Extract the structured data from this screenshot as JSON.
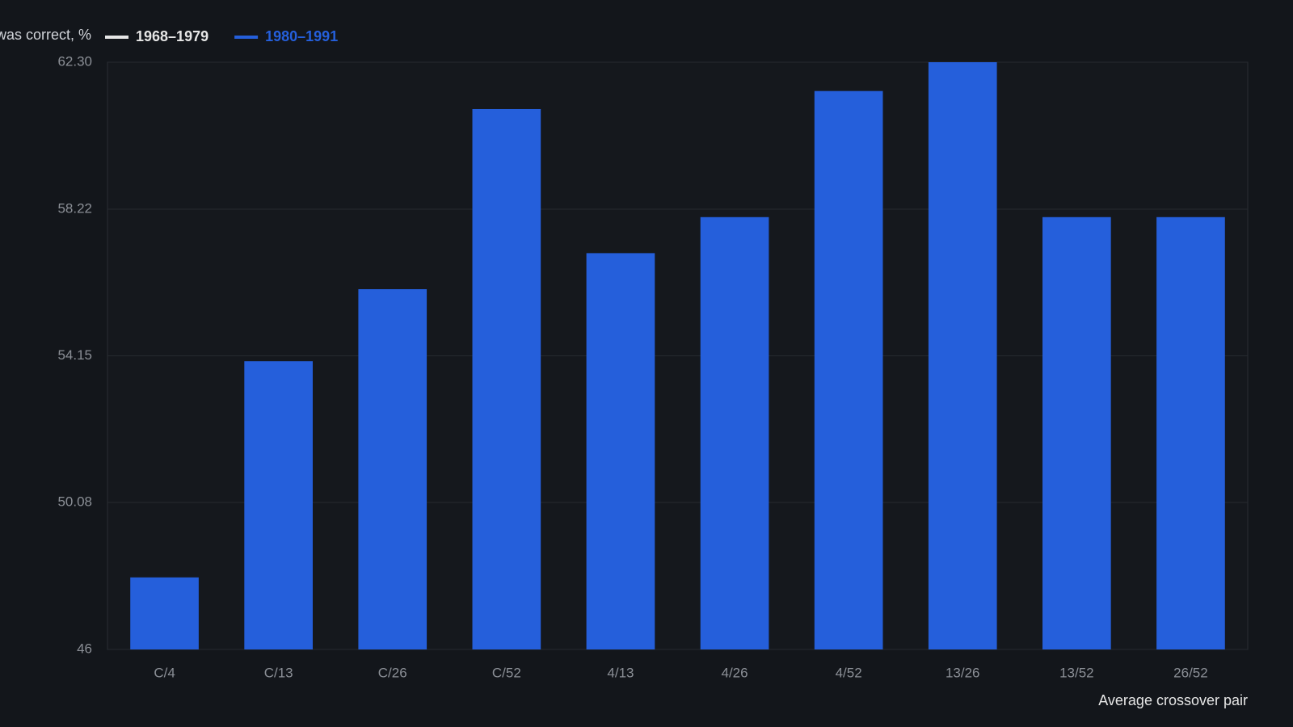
{
  "chart_data": {
    "type": "bar",
    "y_axis_label": "was correct, %",
    "x_axis_label": "Average crossover pair",
    "categories": [
      "C/4",
      "C/13",
      "C/26",
      "C/52",
      "4/13",
      "4/26",
      "4/52",
      "13/26",
      "13/52",
      "26/52"
    ],
    "series": [
      {
        "name": "1968–1979",
        "color": "#e6e6e6",
        "values": [
          null,
          null,
          null,
          null,
          null,
          null,
          null,
          null,
          null,
          null
        ]
      },
      {
        "name": "1980–1991",
        "color": "#255fdb",
        "values": [
          48.0,
          54.0,
          56.0,
          61.0,
          57.0,
          58.0,
          61.5,
          62.3,
          58.0,
          58.0
        ]
      }
    ],
    "ylim": [
      46,
      62.3
    ],
    "yticks": [
      46,
      50.08,
      54.15,
      58.22,
      {
        "value": 62.3,
        "label": "62.30"
      }
    ],
    "grid": true
  }
}
